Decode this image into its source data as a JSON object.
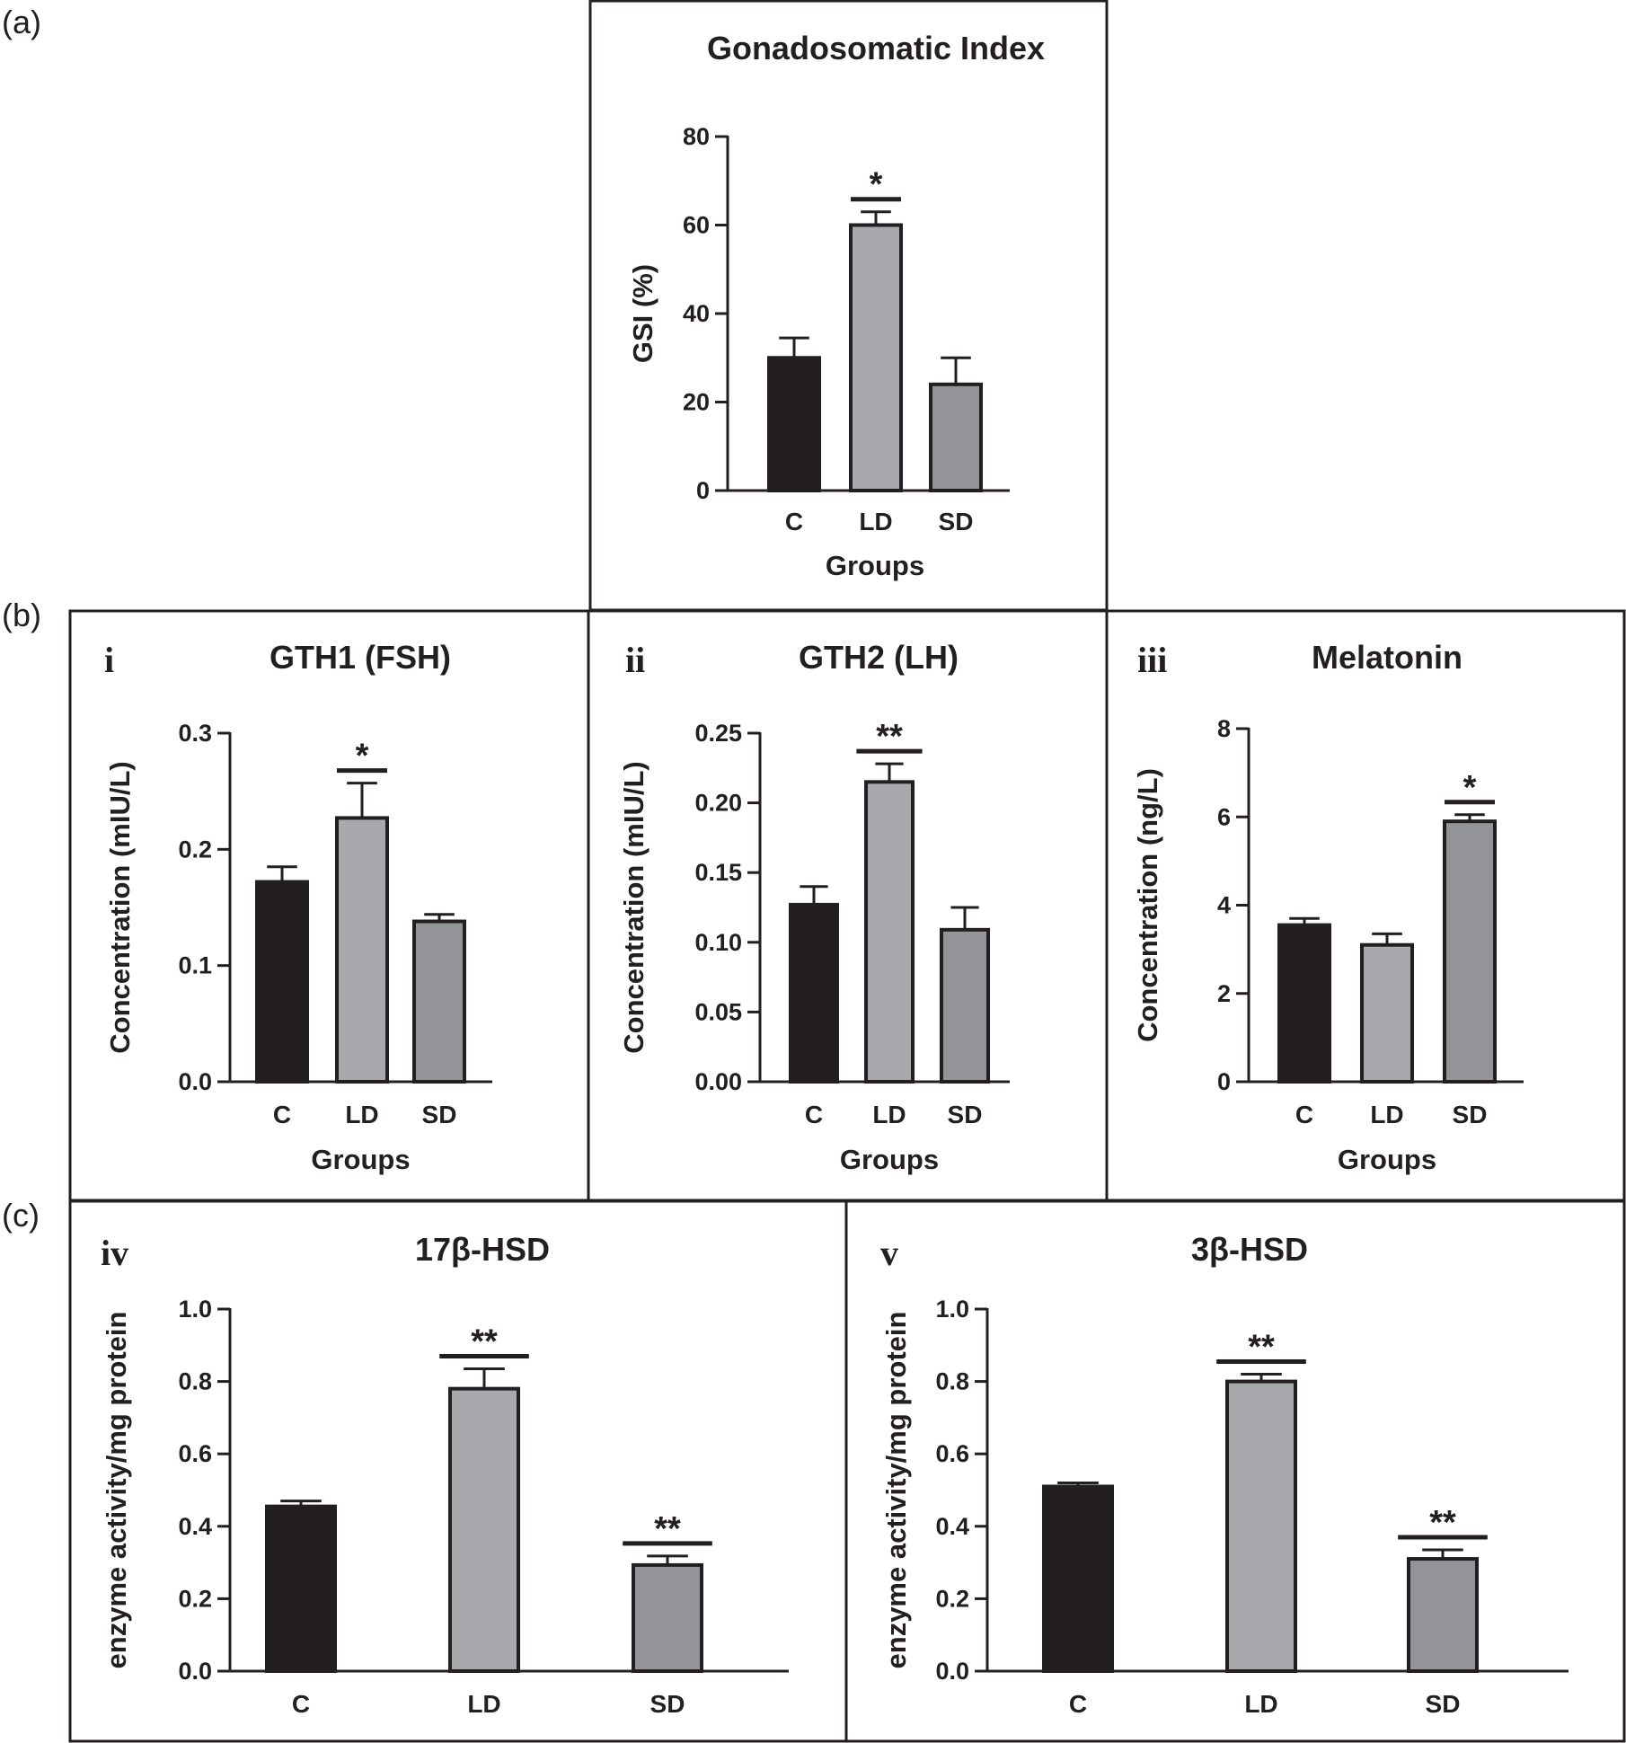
{
  "panel_labels": {
    "a": "(a)",
    "b": "(b)",
    "c": "(c)"
  },
  "colors": {
    "C": "#231f20",
    "LD": "#a7a9ac",
    "SD": "#939598",
    "axis": "#231f20"
  },
  "chart_data": [
    {
      "id": "gsi",
      "type": "bar",
      "roman": "",
      "title": "Gonadosomatic Index",
      "xlabel": "Groups",
      "ylabel": "GSI (%)",
      "categories": [
        "C",
        "LD",
        "SD"
      ],
      "values": [
        30,
        60,
        24
      ],
      "errors": [
        4.5,
        3,
        6
      ],
      "significance": [
        "",
        "*",
        ""
      ],
      "ylim": [
        0,
        80
      ],
      "yticks": [
        0,
        20,
        40,
        60,
        80
      ],
      "ytick_labels": [
        "0",
        "20",
        "40",
        "60",
        "80"
      ]
    },
    {
      "id": "gth1",
      "type": "bar",
      "roman": "i",
      "title": "GTH1 (FSH)",
      "xlabel": "Groups",
      "ylabel": "Concentration (mIU/L)",
      "categories": [
        "C",
        "LD",
        "SD"
      ],
      "values": [
        0.172,
        0.227,
        0.138
      ],
      "errors": [
        0.013,
        0.03,
        0.006
      ],
      "significance": [
        "",
        "*",
        ""
      ],
      "ylim": [
        0,
        0.3
      ],
      "yticks": [
        0,
        0.1,
        0.2,
        0.3
      ],
      "ytick_labels": [
        "0.0",
        "0.1",
        "0.2",
        "0.3"
      ]
    },
    {
      "id": "gth2",
      "type": "bar",
      "roman": "ii",
      "title": "GTH2 (LH)",
      "xlabel": "Groups",
      "ylabel": "Concentration (mIU/L)",
      "categories": [
        "C",
        "LD",
        "SD"
      ],
      "values": [
        0.127,
        0.215,
        0.109
      ],
      "errors": [
        0.013,
        0.013,
        0.016
      ],
      "significance": [
        "",
        "**",
        ""
      ],
      "ylim": [
        0,
        0.25
      ],
      "yticks": [
        0,
        0.05,
        0.1,
        0.15,
        0.2,
        0.25
      ],
      "ytick_labels": [
        "0.00",
        "0.05",
        "0.10",
        "0.15",
        "0.20",
        "0.25"
      ]
    },
    {
      "id": "melatonin",
      "type": "bar",
      "roman": "iii",
      "title": "Melatonin",
      "xlabel": "Groups",
      "ylabel": "Concentration (ng/L)",
      "categories": [
        "C",
        "LD",
        "SD"
      ],
      "values": [
        3.55,
        3.1,
        5.9
      ],
      "errors": [
        0.15,
        0.25,
        0.15
      ],
      "significance": [
        "",
        "",
        "*"
      ],
      "ylim": [
        0,
        8
      ],
      "yticks": [
        0,
        2,
        4,
        6,
        8
      ],
      "ytick_labels": [
        "0",
        "2",
        "4",
        "6",
        "8"
      ]
    },
    {
      "id": "hsd17",
      "type": "bar",
      "roman": "iv",
      "title": "17β-HSD",
      "xlabel": "",
      "ylabel": "enzyme activity/mg protein",
      "categories": [
        "C",
        "LD",
        "SD"
      ],
      "values": [
        0.455,
        0.78,
        0.293
      ],
      "errors": [
        0.015,
        0.055,
        0.025
      ],
      "significance": [
        "",
        "**",
        "**"
      ],
      "ylim": [
        0,
        1.0
      ],
      "yticks": [
        0,
        0.2,
        0.4,
        0.6,
        0.8,
        1.0
      ],
      "ytick_labels": [
        "0.0",
        "0.2",
        "0.4",
        "0.6",
        "0.8",
        "1.0"
      ]
    },
    {
      "id": "hsd3",
      "type": "bar",
      "roman": "v",
      "title": "3β-HSD",
      "xlabel": "",
      "ylabel": "enzyme activity/mg protein",
      "categories": [
        "C",
        "LD",
        "SD"
      ],
      "values": [
        0.51,
        0.8,
        0.31
      ],
      "errors": [
        0.01,
        0.02,
        0.025
      ],
      "significance": [
        "",
        "**",
        "**"
      ],
      "ylim": [
        0,
        1.0
      ],
      "yticks": [
        0,
        0.2,
        0.4,
        0.6,
        0.8,
        1.0
      ],
      "ytick_labels": [
        "0.0",
        "0.2",
        "0.4",
        "0.6",
        "0.8",
        "1.0"
      ]
    }
  ]
}
